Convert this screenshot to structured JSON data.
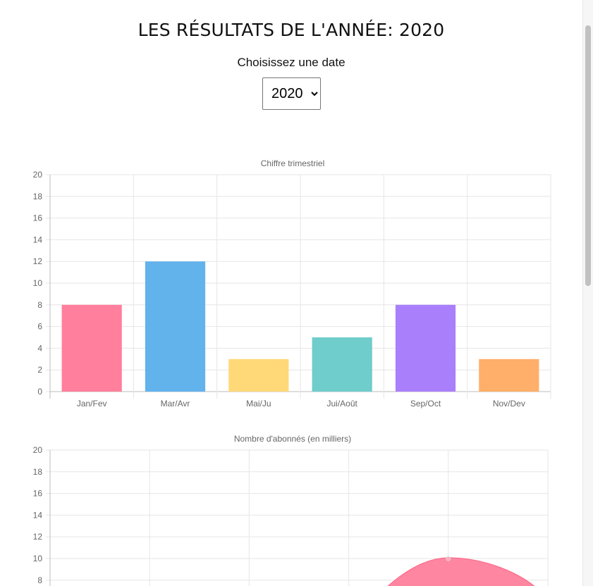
{
  "page": {
    "title": "LES RÉSULTATS DE L'ANNÉE: 2020",
    "date_label": "Choisissez une date",
    "date_select": {
      "selected": "2020",
      "options": [
        "2020"
      ]
    }
  },
  "chart_data": [
    {
      "type": "bar",
      "title": "Chiffre trimestriel",
      "categories": [
        "Jan/Fev",
        "Mar/Avr",
        "Mai/Ju",
        "Jui/Août",
        "Sep/Oct",
        "Nov/Dev"
      ],
      "values": [
        8,
        12,
        3,
        5,
        8,
        3
      ],
      "colors": [
        "#ff7f9c",
        "#62b2ec",
        "#ffd878",
        "#6fcdcc",
        "#aa7ffb",
        "#ffaf69"
      ],
      "ylim": [
        0,
        20
      ],
      "yticks": [
        "0",
        "2",
        "4",
        "6",
        "8",
        "10",
        "12",
        "14",
        "16",
        "18",
        "20"
      ],
      "grid": true,
      "legend": "none"
    },
    {
      "type": "area",
      "title": "Nombre d'abonnés (en milliers)",
      "ylim": [
        0,
        20
      ],
      "yticks": [
        "8",
        "10",
        "12",
        "14",
        "16",
        "18",
        "20"
      ],
      "visible_point": {
        "x_index": 4,
        "y": 10
      },
      "color": "#ff7f9c",
      "grid": true,
      "legend": "none"
    }
  ]
}
